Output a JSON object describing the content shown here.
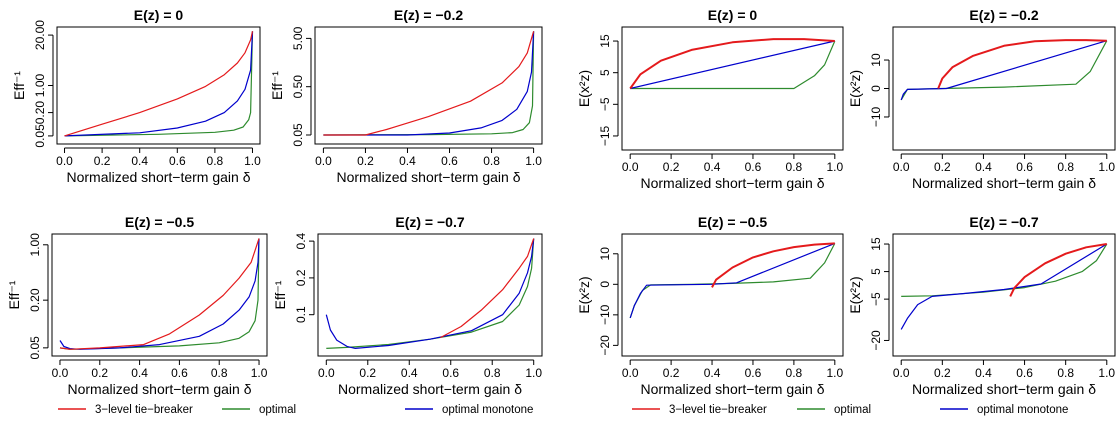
{
  "chart_data": [
    {
      "type": "line",
      "title": "E(z) = 0",
      "xlabel": "Normalized short−term gain δ",
      "ylabel": "Eff⁻¹",
      "yscale": "log",
      "xlim": [
        0,
        1
      ],
      "ylim": [
        0.04,
        25
      ],
      "xticks": [
        "0.0",
        "0.2",
        "0.4",
        "0.6",
        "0.8",
        "1.0"
      ],
      "xtick_values": [
        0,
        0.2,
        0.4,
        0.6,
        0.8,
        1.0
      ],
      "yticks": [
        "0.05",
        "0.20",
        "1.00",
        "20.00"
      ],
      "ytick_values": [
        0.05,
        0.2,
        1.0,
        20.0
      ],
      "series": [
        {
          "name": "3−level tie−breaker",
          "color": "#e41a1c",
          "x": [
            0,
            0.2,
            0.4,
            0.6,
            0.75,
            0.85,
            0.92,
            0.96,
            0.99,
            1.0
          ],
          "y": [
            0.05,
            0.1,
            0.2,
            0.45,
            0.95,
            1.9,
            3.8,
            7,
            15,
            25
          ]
        },
        {
          "name": "optimal",
          "color": "#2e8b2e",
          "x": [
            0,
            0.5,
            0.8,
            0.9,
            0.95,
            0.98,
            0.99,
            1.0
          ],
          "y": [
            0.05,
            0.055,
            0.062,
            0.07,
            0.085,
            0.13,
            0.2,
            25
          ]
        },
        {
          "name": "optimal monotone",
          "color": "#0000cc",
          "x": [
            0,
            0.4,
            0.6,
            0.75,
            0.85,
            0.92,
            0.96,
            0.99,
            1.0
          ],
          "y": [
            0.05,
            0.06,
            0.08,
            0.12,
            0.2,
            0.4,
            0.8,
            2.5,
            25
          ]
        }
      ]
    },
    {
      "type": "line",
      "title": "E(z) = −0.2",
      "xlabel": "Normalized short−term gain δ",
      "ylabel": "Eff⁻¹",
      "yscale": "log",
      "xlim": [
        0,
        1
      ],
      "ylim": [
        0.04,
        7
      ],
      "xticks": [
        "0.0",
        "0.2",
        "0.4",
        "0.6",
        "0.8",
        "1.0"
      ],
      "xtick_values": [
        0,
        0.2,
        0.4,
        0.6,
        0.8,
        1.0
      ],
      "yticks": [
        "0.05",
        "0.50",
        "5.00"
      ],
      "ytick_values": [
        0.05,
        0.5,
        5.0
      ],
      "series": [
        {
          "name": "3−level tie−breaker",
          "color": "#e41a1c",
          "x": [
            0,
            0.2,
            0.3,
            0.5,
            0.7,
            0.85,
            0.93,
            0.97,
            1.0
          ],
          "y": [
            0.05,
            0.05,
            0.065,
            0.12,
            0.25,
            0.6,
            1.3,
            2.5,
            7
          ]
        },
        {
          "name": "optimal",
          "color": "#2e8b2e",
          "x": [
            0,
            0.5,
            0.8,
            0.9,
            0.95,
            0.98,
            0.995,
            1.0
          ],
          "y": [
            0.05,
            0.051,
            0.053,
            0.056,
            0.065,
            0.09,
            0.2,
            7
          ]
        },
        {
          "name": "optimal monotone",
          "color": "#0000cc",
          "x": [
            0,
            0.4,
            0.6,
            0.75,
            0.85,
            0.92,
            0.97,
            0.99,
            1.0
          ],
          "y": [
            0.05,
            0.05,
            0.055,
            0.07,
            0.1,
            0.17,
            0.4,
            1.0,
            7
          ]
        }
      ]
    },
    {
      "type": "line",
      "title": "E(z) = −0.5",
      "xlabel": "Normalized short−term gain δ",
      "ylabel": "Eff⁻¹",
      "yscale": "log",
      "xlim": [
        0,
        1
      ],
      "ylim": [
        0.045,
        1.2
      ],
      "xticks": [
        "0.0",
        "0.2",
        "0.4",
        "0.6",
        "0.8",
        "1.0"
      ],
      "xtick_values": [
        0,
        0.2,
        0.4,
        0.6,
        0.8,
        1.0
      ],
      "yticks": [
        "0.05",
        "0.20",
        "1.00"
      ],
      "ytick_values": [
        0.05,
        0.2,
        1.0
      ],
      "series": [
        {
          "name": "3−level tie−breaker",
          "color": "#e41a1c",
          "x": [
            0,
            0.05,
            0.2,
            0.42,
            0.55,
            0.7,
            0.82,
            0.9,
            0.96,
            1.0
          ],
          "y": [
            0.05,
            0.048,
            0.05,
            0.055,
            0.075,
            0.13,
            0.23,
            0.38,
            0.6,
            1.2
          ]
        },
        {
          "name": "optimal",
          "color": "#2e8b2e",
          "x": [
            0,
            0.05,
            0.3,
            0.6,
            0.8,
            0.9,
            0.95,
            0.98,
            0.995,
            1.0
          ],
          "y": [
            0.05,
            0.048,
            0.05,
            0.053,
            0.058,
            0.066,
            0.08,
            0.11,
            0.2,
            1.2
          ]
        },
        {
          "name": "optimal monotone",
          "color": "#0000cc",
          "x": [
            0,
            0.02,
            0.05,
            0.1,
            0.3,
            0.5,
            0.7,
            0.82,
            0.9,
            0.95,
            0.98,
            0.995,
            1.0
          ],
          "y": [
            0.062,
            0.052,
            0.049,
            0.048,
            0.05,
            0.055,
            0.07,
            0.1,
            0.15,
            0.22,
            0.35,
            0.6,
            1.2
          ]
        }
      ]
    },
    {
      "type": "line",
      "title": "E(z) = −0.7",
      "xlabel": "Normalized short−term gain δ",
      "ylabel": "Eff⁻¹",
      "yscale": "log",
      "xlim": [
        0,
        1
      ],
      "ylim": [
        0.05,
        0.42
      ],
      "xticks": [
        "0.0",
        "0.2",
        "0.4",
        "0.6",
        "0.8",
        "1.0"
      ],
      "xtick_values": [
        0,
        0.2,
        0.4,
        0.6,
        0.8,
        1.0
      ],
      "yticks": [
        "0.1",
        "0.2",
        "0.4"
      ],
      "ytick_values": [
        0.1,
        0.2,
        0.4
      ],
      "series": [
        {
          "name": "3−level tie−breaker",
          "color": "#e41a1c",
          "x": [
            0.55,
            0.65,
            0.75,
            0.85,
            0.93,
            0.97,
            1.0
          ],
          "y": [
            0.065,
            0.08,
            0.11,
            0.16,
            0.24,
            0.3,
            0.42
          ]
        },
        {
          "name": "optimal",
          "color": "#2e8b2e",
          "x": [
            0,
            0.1,
            0.3,
            0.5,
            0.7,
            0.85,
            0.93,
            0.97,
            0.99,
            1.0
          ],
          "y": [
            0.053,
            0.054,
            0.057,
            0.063,
            0.072,
            0.088,
            0.12,
            0.17,
            0.24,
            0.42
          ]
        },
        {
          "name": "optimal monotone",
          "color": "#0000cc",
          "x": [
            0,
            0.02,
            0.05,
            0.1,
            0.14,
            0.3,
            0.5,
            0.7,
            0.85,
            0.93,
            0.97,
            0.99,
            1.0
          ],
          "y": [
            0.1,
            0.075,
            0.062,
            0.055,
            0.053,
            0.056,
            0.063,
            0.074,
            0.1,
            0.15,
            0.22,
            0.3,
            0.42
          ]
        }
      ]
    },
    {
      "type": "line",
      "title": "E(z) = 0",
      "xlabel": "Normalized short−term gain δ",
      "ylabel": "E(x²z)",
      "xlim": [
        0,
        1
      ],
      "ylim": [
        -18,
        18
      ],
      "xticks": [
        "0.0",
        "0.2",
        "0.4",
        "0.6",
        "0.8",
        "1.0"
      ],
      "xtick_values": [
        0,
        0.2,
        0.4,
        0.6,
        0.8,
        1.0
      ],
      "yticks": [
        "−15",
        "−5",
        "5",
        "15"
      ],
      "ytick_values": [
        -15,
        -5,
        5,
        15
      ],
      "series": [
        {
          "name": "3−level tie−breaker",
          "color": "#e41a1c",
          "x": [
            0,
            0.05,
            0.15,
            0.3,
            0.5,
            0.7,
            0.85,
            1.0
          ],
          "y": [
            0,
            4.5,
            8.8,
            12.2,
            14.6,
            15.6,
            15.6,
            15.0
          ]
        },
        {
          "name": "optimal",
          "color": "#2e8b2e",
          "x": [
            0,
            0.8,
            0.9,
            0.95,
            1.0
          ],
          "y": [
            0,
            0,
            4,
            7.5,
            15
          ]
        },
        {
          "name": "optimal monotone",
          "color": "#0000cc",
          "x": [
            0,
            1.0
          ],
          "y": [
            0,
            15
          ]
        }
      ]
    },
    {
      "type": "line",
      "title": "E(z) = −0.2",
      "xlabel": "Normalized short−term gain δ",
      "ylabel": "E(x²z)",
      "xlim": [
        0,
        1
      ],
      "ylim": [
        -20,
        20
      ],
      "xticks": [
        "0.0",
        "0.2",
        "0.4",
        "0.6",
        "0.8",
        "1.0"
      ],
      "xtick_values": [
        0,
        0.2,
        0.4,
        0.6,
        0.8,
        1.0
      ],
      "yticks": [
        "−10",
        "0",
        "10"
      ],
      "ytick_values": [
        -10,
        0,
        10
      ],
      "series": [
        {
          "name": "3−level tie−breaker",
          "color": "#e41a1c",
          "x": [
            0.18,
            0.2,
            0.25,
            0.35,
            0.5,
            0.65,
            0.8,
            0.9,
            1.0
          ],
          "y": [
            0,
            3.5,
            7.5,
            11.5,
            15,
            16.6,
            17.0,
            17.0,
            16.8
          ]
        },
        {
          "name": "optimal",
          "color": "#2e8b2e",
          "x": [
            0,
            0.03,
            0.2,
            0.5,
            0.85,
            0.92,
            1.0
          ],
          "y": [
            -4,
            -0.3,
            0,
            0.5,
            1.5,
            6,
            16.8
          ]
        },
        {
          "name": "optimal monotone",
          "color": "#0000cc",
          "x": [
            0,
            0.01,
            0.03,
            0.22,
            1.0
          ],
          "y": [
            -4,
            -2,
            -0.3,
            0,
            16.8
          ]
        }
      ]
    },
    {
      "type": "line",
      "title": "E(z) = −0.5",
      "xlabel": "Normalized short−term gain δ",
      "ylabel": "E(x²z)",
      "xlim": [
        0,
        1
      ],
      "ylim": [
        -22,
        15
      ],
      "xticks": [
        "0.0",
        "0.2",
        "0.4",
        "0.6",
        "0.8",
        "1.0"
      ],
      "xtick_values": [
        0,
        0.2,
        0.4,
        0.6,
        0.8,
        1.0
      ],
      "yticks": [
        "−20",
        "−10",
        "0",
        "10"
      ],
      "ytick_values": [
        -20,
        -10,
        0,
        10
      ],
      "series": [
        {
          "name": "3−level tie−breaker",
          "color": "#e41a1c",
          "x": [
            0.4,
            0.42,
            0.5,
            0.6,
            0.7,
            0.8,
            0.9,
            1.0
          ],
          "y": [
            -1,
            1.5,
            5.5,
            8.8,
            10.8,
            12.2,
            13.0,
            13.4
          ]
        },
        {
          "name": "optimal",
          "color": "#2e8b2e",
          "x": [
            0,
            0.02,
            0.06,
            0.1,
            0.3,
            0.5,
            0.7,
            0.88,
            0.95,
            1.0
          ],
          "y": [
            -11,
            -7,
            -2,
            -0.2,
            0,
            0.3,
            0.8,
            2,
            7,
            13.4
          ]
        },
        {
          "name": "optimal monotone",
          "color": "#0000cc",
          "x": [
            0,
            0.02,
            0.05,
            0.08,
            0.4,
            0.52,
            1.0
          ],
          "y": [
            -11,
            -7,
            -3,
            -0.3,
            0,
            0.5,
            13.4
          ]
        }
      ]
    },
    {
      "type": "line",
      "title": "E(z) = −0.7",
      "xlabel": "Normalized short−term gain δ",
      "ylabel": "E(x²z)",
      "xlim": [
        0,
        1
      ],
      "ylim": [
        -24,
        17
      ],
      "xticks": [
        "0.0",
        "0.2",
        "0.4",
        "0.6",
        "0.8",
        "1.0"
      ],
      "xtick_values": [
        0,
        0.2,
        0.4,
        0.6,
        0.8,
        1.0
      ],
      "yticks": [
        "−20",
        "−5",
        "5",
        "15"
      ],
      "ytick_values": [
        -20,
        -5,
        5,
        15
      ],
      "series": [
        {
          "name": "3−level tie−breaker",
          "color": "#e41a1c",
          "x": [
            0.53,
            0.55,
            0.6,
            0.7,
            0.8,
            0.9,
            1.0
          ],
          "y": [
            -4,
            -1,
            3,
            8,
            11.5,
            13.8,
            15
          ]
        },
        {
          "name": "optimal",
          "color": "#2e8b2e",
          "x": [
            0,
            0.15,
            0.4,
            0.6,
            0.75,
            0.88,
            0.95,
            1.0
          ],
          "y": [
            -4,
            -3.8,
            -2.5,
            -0.8,
            1.5,
            5,
            9,
            15
          ]
        },
        {
          "name": "optimal monotone",
          "color": "#0000cc",
          "x": [
            0,
            0.03,
            0.08,
            0.15,
            0.3,
            0.5,
            0.68,
            1.0
          ],
          "y": [
            -16,
            -12,
            -7,
            -4,
            -3,
            -1.5,
            0.5,
            15
          ]
        }
      ]
    }
  ],
  "legends": [
    {
      "items": [
        {
          "label": "3−level tie−breaker",
          "color": "#e41a1c"
        },
        {
          "label": "optimal",
          "color": "#2e8b2e"
        },
        {
          "label": "optimal monotone",
          "color": "#0000cc"
        }
      ]
    },
    {
      "items": [
        {
          "label": "3−level tie−breaker",
          "color": "#e41a1c"
        },
        {
          "label": "optimal",
          "color": "#2e8b2e"
        },
        {
          "label": "optimal monotone",
          "color": "#0000cc"
        }
      ]
    }
  ]
}
